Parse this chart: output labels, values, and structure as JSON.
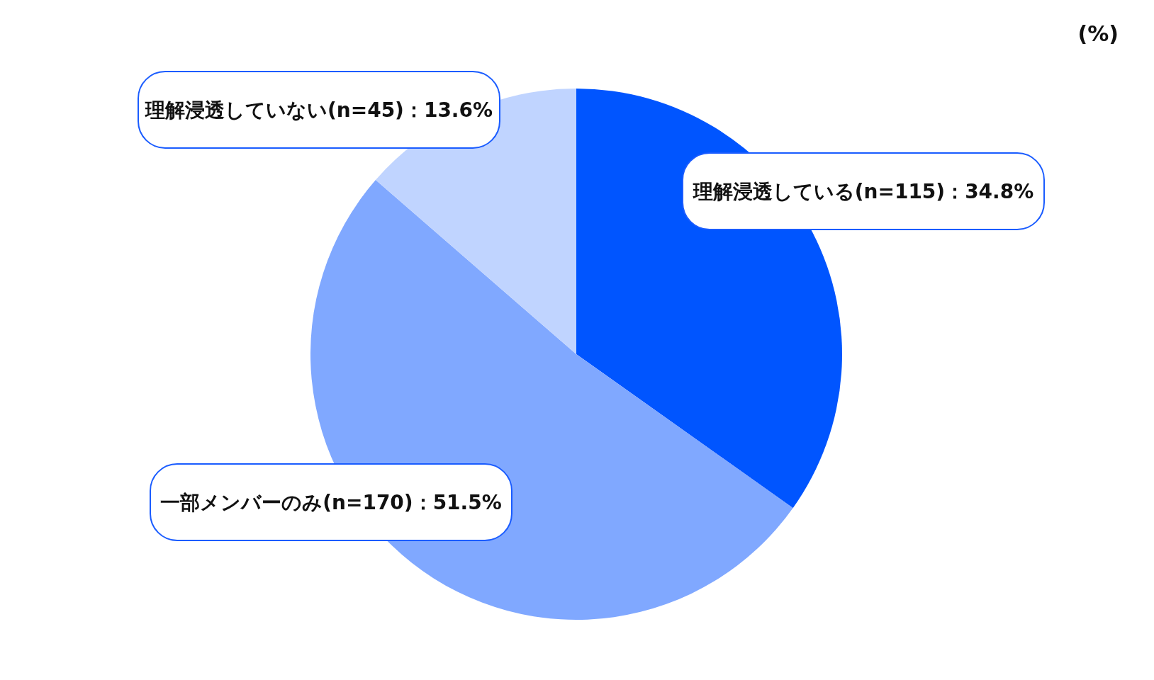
{
  "chart_data": {
    "type": "pie",
    "categories": [
      "理解浸透している(n=115)：34.8%",
      "一部メンバーのみ(n=170)：51.5%",
      "理解浸透していない(n=45)：13.6%"
    ],
    "values": [
      34.8,
      51.5,
      13.6
    ],
    "colors": [
      "#0055ff",
      "#80a8ff",
      "#c0d4ff"
    ],
    "annotations": [
      "(%)"
    ]
  }
}
